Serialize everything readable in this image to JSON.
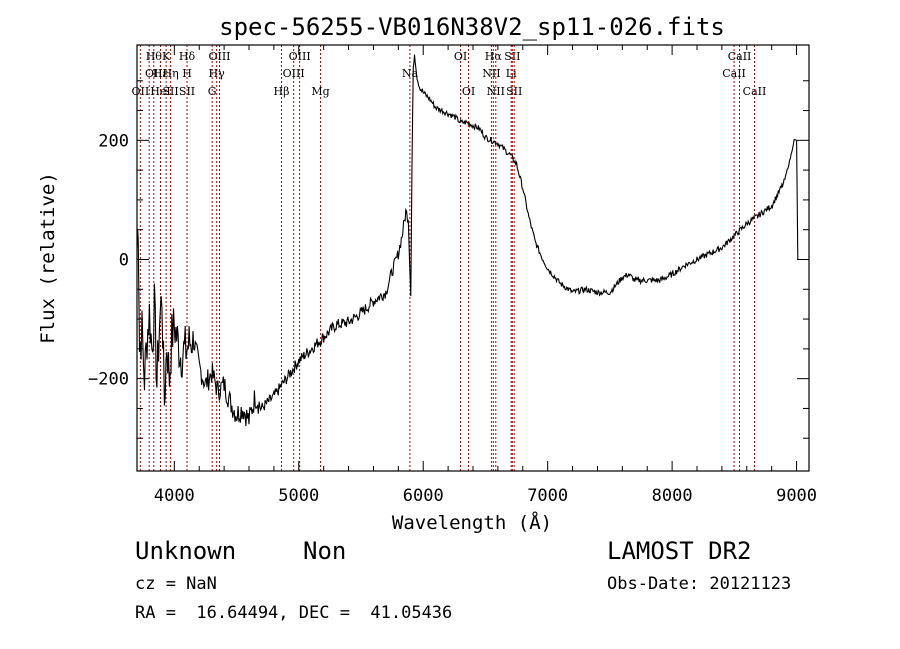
{
  "chart_data": {
    "type": "line",
    "title": "spec-56255-VB016N38V2_sp11-026.fits",
    "xlabel": "Wavelength (Å)",
    "ylabel": "Flux (relative)",
    "xlim": [
      3700,
      9100
    ],
    "ylim": [
      -355,
      360
    ],
    "x_ticks": [
      4000,
      5000,
      6000,
      7000,
      8000,
      9000
    ],
    "y_ticks": [
      -200,
      0,
      200
    ],
    "grid": false,
    "line_color": "#000000",
    "marker_color": "#aa0000",
    "series": [
      {
        "x": [
          3700,
          3710,
          3720,
          3740,
          3760,
          3780,
          3800,
          3820,
          3840,
          3860,
          3880,
          3900,
          3920,
          3940,
          3960,
          3980,
          4000,
          4050,
          4100,
          4150,
          4200,
          4250,
          4300,
          4350,
          4400,
          4450,
          4500,
          4550,
          4600,
          4650,
          4700,
          4800,
          4900,
          5000,
          5100,
          5200,
          5300,
          5400,
          5500,
          5600,
          5700,
          5750,
          5800,
          5830,
          5860,
          5880,
          5890,
          5900,
          5910,
          5920,
          5930,
          5950,
          5970,
          6000,
          6050,
          6100,
          6150,
          6200,
          6250,
          6300,
          6350,
          6400,
          6450,
          6500,
          6550,
          6600,
          6650,
          6700,
          6750,
          6800,
          6850,
          6900,
          6950,
          7000,
          7100,
          7200,
          7300,
          7400,
          7500,
          7600,
          7650,
          7700,
          7800,
          7900,
          8000,
          8100,
          8200,
          8300,
          8400,
          8500,
          8600,
          8700,
          8800,
          8900,
          8950,
          8980,
          9000,
          9010
        ],
        "y": [
          20,
          70,
          -150,
          -120,
          -200,
          -130,
          -90,
          -150,
          -80,
          -210,
          -110,
          -60,
          -240,
          -140,
          -200,
          -130,
          -110,
          -160,
          -150,
          -130,
          -180,
          -210,
          -190,
          -220,
          -210,
          -240,
          -260,
          -250,
          -270,
          -230,
          -250,
          -230,
          -200,
          -170,
          -150,
          -130,
          -110,
          -105,
          -90,
          -70,
          -55,
          -20,
          10,
          40,
          80,
          70,
          0,
          -60,
          160,
          320,
          345,
          305,
          290,
          280,
          270,
          255,
          250,
          245,
          240,
          230,
          230,
          225,
          220,
          205,
          200,
          195,
          185,
          175,
          160,
          120,
          70,
          30,
          5,
          -15,
          -40,
          -55,
          -50,
          -55,
          -55,
          -30,
          -25,
          -35,
          -35,
          -35,
          -25,
          -10,
          0,
          10,
          20,
          40,
          60,
          75,
          90,
          130,
          170,
          200,
          200,
          0
        ]
      }
    ],
    "lines": [
      {
        "x": 3727,
        "labels": [
          "OII"
        ],
        "row": 2
      },
      {
        "x": 3798,
        "labels": [],
        "row": 0
      },
      {
        "x": 3835,
        "labels": [
          "Hθ",
          "OII"
        ],
        "row": 0
      },
      {
        "x": 3889,
        "labels": [
          "Hε",
          "HeI"
        ],
        "row": 1
      },
      {
        "x": 3934,
        "labels": [
          "K"
        ],
        "row": 0
      },
      {
        "x": 3970,
        "labels": [
          "Hη",
          "SII"
        ],
        "row": 1
      },
      {
        "x": 4102,
        "labels": [
          "Hδ",
          "H",
          "SII"
        ],
        "row": 0
      },
      {
        "x": 4304,
        "labels": [
          "G"
        ],
        "row": 2
      },
      {
        "x": 4340,
        "labels": [
          "Hγ"
        ],
        "row": 1
      },
      {
        "x": 4363,
        "labels": [
          "OIII"
        ],
        "row": 0
      },
      {
        "x": 4861,
        "labels": [
          "Hβ"
        ],
        "row": 2
      },
      {
        "x": 4959,
        "labels": [
          "OIII"
        ],
        "row": 1
      },
      {
        "x": 5007,
        "labels": [
          "OIII"
        ],
        "row": 0
      },
      {
        "x": 5175,
        "labels": [
          "Mg"
        ],
        "row": 2
      },
      {
        "x": 5893,
        "labels": [
          "Na"
        ],
        "row": 1
      },
      {
        "x": 6300,
        "labels": [
          "OI"
        ],
        "row": 0
      },
      {
        "x": 6364,
        "labels": [
          "OI"
        ],
        "row": 2
      },
      {
        "x": 6548,
        "labels": [
          "NII"
        ],
        "row": 1
      },
      {
        "x": 6563,
        "labels": [
          "Hα"
        ],
        "row": 0
      },
      {
        "x": 6583,
        "labels": [
          "NII"
        ],
        "row": 2
      },
      {
        "x": 6707,
        "labels": [
          "Li"
        ],
        "row": 1
      },
      {
        "x": 6716,
        "labels": [
          "SII"
        ],
        "row": 0
      },
      {
        "x": 6731,
        "labels": [
          "SII"
        ],
        "row": 2
      },
      {
        "x": 8498,
        "labels": [
          "CaII"
        ],
        "row": 1
      },
      {
        "x": 8542,
        "labels": [
          "CaII"
        ],
        "row": 0
      },
      {
        "x": 8662,
        "labels": [
          "CaII"
        ],
        "row": 2
      }
    ]
  },
  "footer": {
    "class_label": "Unknown",
    "subclass_label": "Non",
    "survey": "LAMOST DR2",
    "cz": "cz = NaN",
    "obs_date": "Obs-Date: 20121123",
    "coords": "RA =  16.64494, DEC =  41.05436"
  }
}
